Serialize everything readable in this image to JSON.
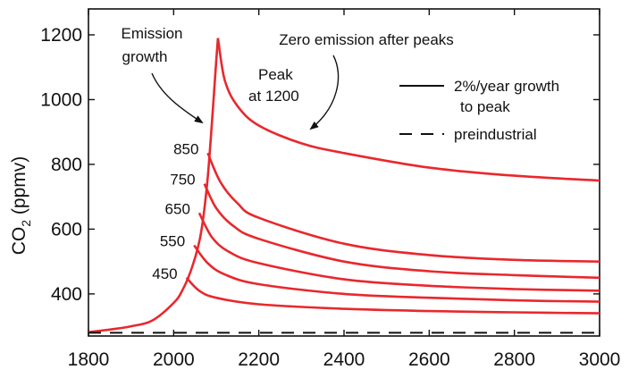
{
  "chart_data": {
    "type": "line",
    "title": "",
    "xlabel": "",
    "ylabel": "CO",
    "ylabel_sub": "2",
    "ylabel_unit": "(ppmv)",
    "xlim": [
      1800,
      3000
    ],
    "ylim": [
      270,
      1280
    ],
    "xticks": [
      1800,
      2000,
      2200,
      2400,
      2600,
      2800,
      3000
    ],
    "yticks": [
      400,
      600,
      800,
      1000,
      1200
    ],
    "grid": false,
    "legend_position": "top-right",
    "legend": [
      {
        "style": "solid",
        "line1": "2%/year growth",
        "line2": "to peak"
      },
      {
        "style": "dashed",
        "line1": "preindustrial",
        "line2": ""
      }
    ],
    "series_color": "#e8282d",
    "preindustrial": 280,
    "growth_curve": [
      [
        1800,
        282
      ],
      [
        1850,
        290
      ],
      [
        1900,
        300
      ],
      [
        1950,
        318
      ],
      [
        2000,
        372
      ],
      [
        2020,
        410
      ],
      [
        2040,
        470
      ],
      [
        2060,
        560
      ],
      [
        2070,
        640
      ],
      [
        2080,
        760
      ],
      [
        2090,
        930
      ],
      [
        2100,
        1120
      ],
      [
        2104,
        1190
      ]
    ],
    "series": [
      {
        "peak_label": "450",
        "peak": [
          2030,
          450
        ],
        "decay": [
          [
            2030,
            450
          ],
          [
            2060,
            410
          ],
          [
            2100,
            388
          ],
          [
            2200,
            368
          ],
          [
            2400,
            354
          ],
          [
            2600,
            347
          ],
          [
            2800,
            343
          ],
          [
            3000,
            340
          ]
        ]
      },
      {
        "peak_label": "550",
        "peak": [
          2048,
          550
        ],
        "decay": [
          [
            2048,
            550
          ],
          [
            2080,
            495
          ],
          [
            2120,
            460
          ],
          [
            2200,
            430
          ],
          [
            2400,
            400
          ],
          [
            2600,
            388
          ],
          [
            2800,
            380
          ],
          [
            3000,
            376
          ]
        ]
      },
      {
        "peak_label": "650",
        "peak": [
          2060,
          650
        ],
        "decay": [
          [
            2060,
            650
          ],
          [
            2090,
            575
          ],
          [
            2130,
            530
          ],
          [
            2200,
            495
          ],
          [
            2400,
            445
          ],
          [
            2600,
            425
          ],
          [
            2800,
            415
          ],
          [
            3000,
            410
          ]
        ]
      },
      {
        "peak_label": "750",
        "peak": [
          2072,
          740
        ],
        "decay": [
          [
            2072,
            740
          ],
          [
            2100,
            665
          ],
          [
            2140,
            610
          ],
          [
            2200,
            570
          ],
          [
            2400,
            500
          ],
          [
            2600,
            470
          ],
          [
            2800,
            458
          ],
          [
            3000,
            450
          ]
        ]
      },
      {
        "peak_label": "850",
        "peak": [
          2080,
          835
        ],
        "decay": [
          [
            2080,
            835
          ],
          [
            2110,
            745
          ],
          [
            2150,
            680
          ],
          [
            2200,
            635
          ],
          [
            2400,
            555
          ],
          [
            2600,
            520
          ],
          [
            2800,
            505
          ],
          [
            3000,
            500
          ]
        ]
      },
      {
        "peak_label": "",
        "peak": [
          2104,
          1190
        ],
        "decay": [
          [
            2104,
            1190
          ],
          [
            2120,
            1060
          ],
          [
            2150,
            980
          ],
          [
            2200,
            920
          ],
          [
            2300,
            865
          ],
          [
            2400,
            835
          ],
          [
            2600,
            790
          ],
          [
            2800,
            765
          ],
          [
            3000,
            750
          ]
        ]
      }
    ],
    "annotations": {
      "emission_line1": "Emission",
      "emission_line2": "growth",
      "zero": "Zero emission after peaks",
      "peak_line1": "Peak",
      "peak_line2": "at 1200"
    }
  }
}
